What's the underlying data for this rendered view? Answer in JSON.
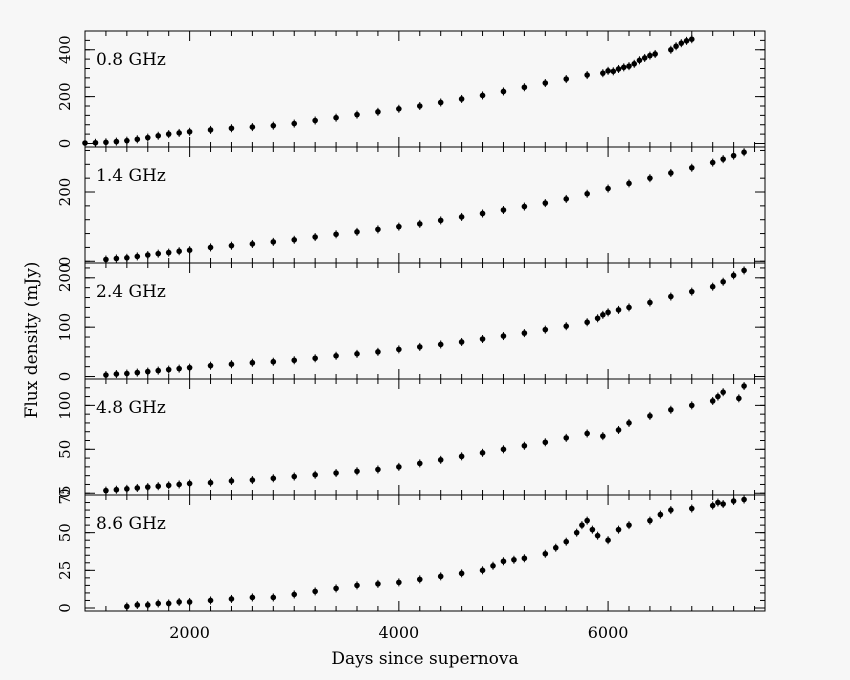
{
  "chart_data": {
    "type": "scatter",
    "xlabel": "Days since supernova",
    "ylabel": "Flux density (mJy)",
    "xlim": [
      1000,
      7500
    ],
    "x_ticks": [
      "2000",
      "4000",
      "6000"
    ],
    "panels": [
      {
        "label": "0.8 GHz",
        "ylim": [
          -15,
          480
        ],
        "y_ticks": [
          "0",
          "200",
          "400"
        ],
        "x": [
          1000,
          1100,
          1200,
          1300,
          1400,
          1500,
          1600,
          1700,
          1800,
          1900,
          2000,
          2200,
          2400,
          2600,
          2800,
          3000,
          3200,
          3400,
          3600,
          3800,
          4000,
          4200,
          4400,
          4600,
          4800,
          5000,
          5200,
          5400,
          5600,
          5800,
          5950,
          6000,
          6050,
          6100,
          6150,
          6200,
          6250,
          6300,
          6350,
          6400,
          6450,
          6600,
          6650,
          6700,
          6750,
          6800
        ],
        "y": [
          2,
          3,
          5,
          8,
          12,
          18,
          25,
          33,
          40,
          45,
          50,
          58,
          65,
          70,
          76,
          85,
          98,
          110,
          123,
          135,
          148,
          160,
          175,
          190,
          205,
          222,
          240,
          258,
          275,
          292,
          300,
          310,
          308,
          318,
          325,
          330,
          340,
          355,
          365,
          375,
          382,
          400,
          415,
          428,
          438,
          445
        ]
      },
      {
        "label": "1.4 GHz",
        "ylim": [
          -5,
          330
        ],
        "y_ticks": [
          "0",
          "200"
        ],
        "x": [
          1200,
          1300,
          1400,
          1500,
          1600,
          1700,
          1800,
          1900,
          2000,
          2200,
          2400,
          2600,
          2800,
          3000,
          3200,
          3400,
          3600,
          3800,
          4000,
          4200,
          4400,
          4600,
          4800,
          5000,
          5200,
          5400,
          5600,
          5800,
          6000,
          6200,
          6400,
          6600,
          6800,
          7000,
          7100,
          7200,
          7300
        ],
        "y": [
          5,
          8,
          10,
          14,
          18,
          22,
          25,
          29,
          32,
          40,
          45,
          50,
          56,
          62,
          70,
          78,
          85,
          92,
          100,
          108,
          118,
          128,
          138,
          148,
          158,
          168,
          180,
          195,
          210,
          225,
          240,
          255,
          270,
          285,
          295,
          305,
          315
        ]
      },
      {
        "label": "2.4 GHz",
        "ylim": [
          -5,
          230
        ],
        "y_ticks": [
          "0",
          "100",
          "200"
        ],
        "x": [
          1200,
          1300,
          1400,
          1500,
          1600,
          1700,
          1800,
          1900,
          2000,
          2200,
          2400,
          2600,
          2800,
          3000,
          3200,
          3400,
          3600,
          3800,
          4000,
          4200,
          4400,
          4600,
          4800,
          5000,
          5200,
          5400,
          5600,
          5800,
          5900,
          5950,
          6000,
          6100,
          6200,
          6400,
          6600,
          6800,
          7000,
          7100,
          7200,
          7300
        ],
        "y": [
          3,
          5,
          6,
          8,
          10,
          12,
          14,
          16,
          18,
          22,
          25,
          28,
          30,
          33,
          37,
          42,
          46,
          50,
          55,
          60,
          65,
          70,
          76,
          82,
          88,
          95,
          102,
          110,
          118,
          125,
          130,
          135,
          140,
          150,
          162,
          172,
          182,
          192,
          205,
          215
        ]
      },
      {
        "label": "4.8 GHz",
        "ylim": [
          -2,
          130
        ],
        "y_ticks": [
          "0",
          "50",
          "100"
        ],
        "x": [
          1200,
          1300,
          1400,
          1500,
          1600,
          1700,
          1800,
          1900,
          2000,
          2200,
          2400,
          2600,
          2800,
          3000,
          3200,
          3400,
          3600,
          3800,
          4000,
          4200,
          4400,
          4600,
          4800,
          5000,
          5200,
          5400,
          5600,
          5800,
          5950,
          6100,
          6200,
          6400,
          6600,
          6800,
          7000,
          7050,
          7100,
          7250,
          7300
        ],
        "y": [
          3,
          4,
          5,
          6,
          7,
          8,
          9,
          10,
          11,
          12,
          14,
          15,
          17,
          19,
          21,
          23,
          25,
          27,
          30,
          34,
          38,
          42,
          46,
          50,
          54,
          58,
          63,
          68,
          65,
          72,
          80,
          88,
          95,
          100,
          105,
          110,
          115,
          108,
          122
        ]
      },
      {
        "label": "8.6 GHz",
        "ylim": [
          -2,
          75
        ],
        "y_ticks": [
          "0",
          "25",
          "50",
          "75"
        ],
        "x": [
          1400,
          1500,
          1600,
          1700,
          1800,
          1900,
          2000,
          2200,
          2400,
          2600,
          2800,
          3000,
          3200,
          3400,
          3600,
          3800,
          4000,
          4200,
          4400,
          4600,
          4800,
          4900,
          5000,
          5100,
          5200,
          5400,
          5500,
          5600,
          5700,
          5750,
          5800,
          5850,
          5900,
          6000,
          6100,
          6200,
          6400,
          6500,
          6600,
          6800,
          7000,
          7050,
          7100,
          7200,
          7300
        ],
        "y": [
          1,
          2,
          2,
          3,
          3,
          4,
          4,
          5,
          6,
          7,
          7,
          9,
          11,
          13,
          15,
          16,
          17,
          19,
          21,
          23,
          25,
          28,
          31,
          32,
          33,
          36,
          40,
          44,
          50,
          55,
          58,
          52,
          48,
          45,
          52,
          55,
          58,
          62,
          65,
          66,
          68,
          70,
          69,
          71,
          72
        ]
      }
    ]
  }
}
